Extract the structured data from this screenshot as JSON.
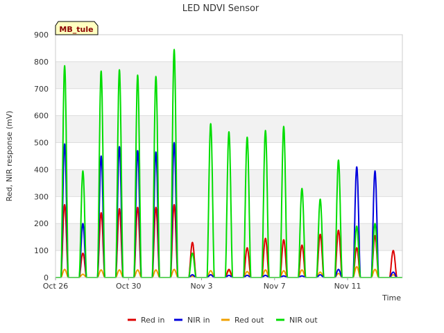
{
  "chart_data": {
    "type": "line",
    "title": "LED NDVI Sensor",
    "xlabel": "Time",
    "ylabel": "Red, NIR response (mV)",
    "ylim": [
      0,
      900
    ],
    "yticks": [
      0,
      100,
      200,
      300,
      400,
      500,
      600,
      700,
      800,
      900
    ],
    "xlim": [
      "2023-10-26",
      "2023-11-14"
    ],
    "xticks": [
      "Oct 26",
      "Oct 30",
      "Nov 3",
      "Nov 7",
      "Nov 11"
    ],
    "grid": "horizontal bands",
    "legend": "bottom",
    "badge": "MB_tule",
    "series": [
      {
        "name": "Red in",
        "color": "#dd0000",
        "day_peaks": [
          [
            "Oct 26",
            270
          ],
          [
            "Oct 27",
            90
          ],
          [
            "Oct 28",
            240
          ],
          [
            "Oct 29",
            255
          ],
          [
            "Oct 30",
            260
          ],
          [
            "Oct 31",
            260
          ],
          [
            "Nov 1",
            270
          ],
          [
            "Nov 2",
            130
          ],
          [
            "Nov 3",
            10
          ],
          [
            "Nov 4",
            30
          ],
          [
            "Nov 5",
            110
          ],
          [
            "Nov 6",
            145
          ],
          [
            "Nov 7",
            140
          ],
          [
            "Nov 8",
            120
          ],
          [
            "Nov 9",
            160
          ],
          [
            "Nov 10",
            175
          ],
          [
            "Nov 11",
            110
          ],
          [
            "Nov 12",
            155
          ],
          [
            "Nov 13",
            100
          ]
        ]
      },
      {
        "name": "NIR in",
        "color": "#0000dd",
        "day_peaks": [
          [
            "Oct 26",
            495
          ],
          [
            "Oct 27",
            200
          ],
          [
            "Oct 28",
            450
          ],
          [
            "Oct 29",
            485
          ],
          [
            "Oct 30",
            470
          ],
          [
            "Oct 31",
            465
          ],
          [
            "Nov 1",
            500
          ],
          [
            "Nov 2",
            10
          ],
          [
            "Nov 3",
            10
          ],
          [
            "Nov 4",
            8
          ],
          [
            "Nov 5",
            8
          ],
          [
            "Nov 6",
            8
          ],
          [
            "Nov 7",
            6
          ],
          [
            "Nov 8",
            6
          ],
          [
            "Nov 9",
            10
          ],
          [
            "Nov 10",
            30
          ],
          [
            "Nov 11",
            410
          ],
          [
            "Nov 12",
            395
          ],
          [
            "Nov 13",
            20
          ]
        ]
      },
      {
        "name": "Red out",
        "color": "#f0a000",
        "day_peaks": [
          [
            "Oct 26",
            30
          ],
          [
            "Oct 27",
            12
          ],
          [
            "Oct 28",
            28
          ],
          [
            "Oct 29",
            28
          ],
          [
            "Oct 30",
            28
          ],
          [
            "Oct 31",
            28
          ],
          [
            "Nov 1",
            30
          ],
          [
            "Nov 2",
            5
          ],
          [
            "Nov 3",
            25
          ],
          [
            "Nov 4",
            25
          ],
          [
            "Nov 5",
            22
          ],
          [
            "Nov 6",
            28
          ],
          [
            "Nov 7",
            25
          ],
          [
            "Nov 8",
            28
          ],
          [
            "Nov 9",
            20
          ],
          [
            "Nov 10",
            15
          ],
          [
            "Nov 11",
            40
          ],
          [
            "Nov 12",
            30
          ],
          [
            "Nov 13",
            10
          ]
        ]
      },
      {
        "name": "NIR out",
        "color": "#00dd00",
        "day_peaks": [
          [
            "Oct 26",
            785
          ],
          [
            "Oct 27",
            395
          ],
          [
            "Oct 28",
            765
          ],
          [
            "Oct 29",
            770
          ],
          [
            "Oct 30",
            750
          ],
          [
            "Oct 31",
            745
          ],
          [
            "Nov 1",
            845
          ],
          [
            "Nov 2",
            90
          ],
          [
            "Nov 3",
            570
          ],
          [
            "Nov 4",
            540
          ],
          [
            "Nov 5",
            520
          ],
          [
            "Nov 6",
            545
          ],
          [
            "Nov 7",
            560
          ],
          [
            "Nov 8",
            330
          ],
          [
            "Nov 9",
            290
          ],
          [
            "Nov 10",
            435
          ],
          [
            "Nov 11",
            190
          ],
          [
            "Nov 12",
            200
          ],
          [
            "Nov 13",
            0
          ]
        ]
      }
    ]
  }
}
